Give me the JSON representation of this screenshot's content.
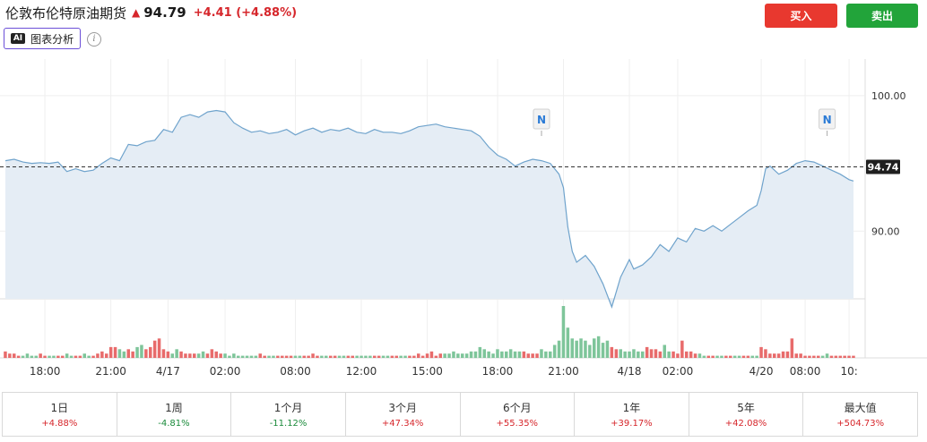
{
  "header": {
    "title": "伦敦布伦特原油期货",
    "price": "94.79",
    "change": "+4.41 (+4.88%)",
    "ai_label": "图表分析",
    "ai_badge": "AI",
    "info": "i",
    "buy_label": "买入",
    "sell_label": "卖出"
  },
  "colors": {
    "up": "#d6262b",
    "down": "#1a8a3a",
    "line": "#6fa3cc",
    "area": "#e5edf5",
    "buy": "#e8382f",
    "sell": "#22a43a"
  },
  "periods": [
    {
      "label": "1日",
      "value": "+4.88%",
      "dir": "up"
    },
    {
      "label": "1周",
      "value": "-4.81%",
      "dir": "down"
    },
    {
      "label": "1个月",
      "value": "-11.12%",
      "dir": "down"
    },
    {
      "label": "3个月",
      "value": "+47.34%",
      "dir": "up"
    },
    {
      "label": "6个月",
      "value": "+55.35%",
      "dir": "up"
    },
    {
      "label": "1年",
      "value": "+39.17%",
      "dir": "up"
    },
    {
      "label": "5年",
      "value": "+42.08%",
      "dir": "up"
    },
    {
      "label": "最大值",
      "value": "+504.73%",
      "dir": "up"
    }
  ],
  "chart_data": {
    "type": "area",
    "y_ticks": [
      "100.00",
      "90.00"
    ],
    "y_tick_values": [
      100,
      90
    ],
    "ylim": [
      85,
      102.7
    ],
    "current_price_label": "94.74",
    "current_price": 94.74,
    "x_tick_labels": [
      "18:00",
      "21:00",
      "4/17",
      "02:00",
      "08:00",
      "12:00",
      "15:00",
      "18:00",
      "21:00",
      "4/18",
      "02:00",
      "4/20",
      "08:00",
      "10:"
    ],
    "x_tick_values": [
      9,
      24,
      37,
      50,
      66,
      81,
      96,
      112,
      127,
      142,
      153,
      172,
      182,
      192
    ],
    "x_domain": [
      0,
      194
    ],
    "news_markers": [
      {
        "label": "N",
        "x": 122
      },
      {
        "label": "N",
        "x": 187
      }
    ],
    "price_series": [
      [
        0,
        95.2
      ],
      [
        2,
        95.3
      ],
      [
        4,
        95.1
      ],
      [
        6,
        95.0
      ],
      [
        8,
        95.05
      ],
      [
        10,
        95.0
      ],
      [
        12,
        95.1
      ],
      [
        14,
        94.4
      ],
      [
        16,
        94.6
      ],
      [
        18,
        94.4
      ],
      [
        20,
        94.5
      ],
      [
        22,
        95.0
      ],
      [
        24,
        95.4
      ],
      [
        26,
        95.2
      ],
      [
        28,
        96.4
      ],
      [
        30,
        96.3
      ],
      [
        32,
        96.6
      ],
      [
        34,
        96.7
      ],
      [
        36,
        97.5
      ],
      [
        38,
        97.3
      ],
      [
        40,
        98.4
      ],
      [
        42,
        98.6
      ],
      [
        44,
        98.4
      ],
      [
        46,
        98.8
      ],
      [
        48,
        98.9
      ],
      [
        50,
        98.8
      ],
      [
        52,
        98.0
      ],
      [
        54,
        97.6
      ],
      [
        56,
        97.3
      ],
      [
        58,
        97.4
      ],
      [
        60,
        97.2
      ],
      [
        62,
        97.3
      ],
      [
        64,
        97.5
      ],
      [
        66,
        97.1
      ],
      [
        68,
        97.4
      ],
      [
        70,
        97.6
      ],
      [
        72,
        97.3
      ],
      [
        74,
        97.5
      ],
      [
        76,
        97.4
      ],
      [
        78,
        97.6
      ],
      [
        80,
        97.3
      ],
      [
        82,
        97.2
      ],
      [
        84,
        97.5
      ],
      [
        86,
        97.3
      ],
      [
        88,
        97.3
      ],
      [
        90,
        97.2
      ],
      [
        92,
        97.4
      ],
      [
        94,
        97.7
      ],
      [
        96,
        97.8
      ],
      [
        98,
        97.9
      ],
      [
        100,
        97.7
      ],
      [
        102,
        97.6
      ],
      [
        104,
        97.5
      ],
      [
        106,
        97.4
      ],
      [
        108,
        97.0
      ],
      [
        110,
        96.2
      ],
      [
        112,
        95.6
      ],
      [
        114,
        95.3
      ],
      [
        116,
        94.8
      ],
      [
        118,
        95.1
      ],
      [
        120,
        95.3
      ],
      [
        122,
        95.2
      ],
      [
        124,
        95.0
      ],
      [
        125,
        94.6
      ],
      [
        126,
        94.2
      ],
      [
        127,
        93.2
      ],
      [
        128,
        90.3
      ],
      [
        129,
        88.5
      ],
      [
        130,
        87.7
      ],
      [
        132,
        88.2
      ],
      [
        134,
        87.4
      ],
      [
        136,
        86.1
      ],
      [
        138,
        84.4
      ],
      [
        140,
        86.6
      ],
      [
        142,
        87.9
      ],
      [
        143,
        87.2
      ],
      [
        145,
        87.5
      ],
      [
        147,
        88.1
      ],
      [
        149,
        89.0
      ],
      [
        151,
        88.5
      ],
      [
        153,
        89.5
      ],
      [
        155,
        89.2
      ],
      [
        157,
        90.2
      ],
      [
        159,
        90.0
      ],
      [
        161,
        90.4
      ],
      [
        163,
        90.0
      ],
      [
        165,
        90.5
      ],
      [
        167,
        91.0
      ],
      [
        169,
        91.5
      ],
      [
        171,
        91.9
      ],
      [
        172,
        93.0
      ],
      [
        173,
        94.6
      ],
      [
        174,
        94.8
      ],
      [
        176,
        94.2
      ],
      [
        178,
        94.5
      ],
      [
        180,
        95.0
      ],
      [
        182,
        95.2
      ],
      [
        184,
        95.1
      ],
      [
        186,
        94.8
      ],
      [
        188,
        94.5
      ],
      [
        190,
        94.2
      ],
      [
        192,
        93.8
      ],
      [
        193,
        93.7
      ]
    ],
    "volume_series": [
      [
        0,
        3
      ],
      [
        1,
        2
      ],
      [
        2,
        2
      ],
      [
        3,
        1
      ],
      [
        4,
        1
      ],
      [
        5,
        2
      ],
      [
        6,
        1
      ],
      [
        7,
        1
      ],
      [
        8,
        2
      ],
      [
        9,
        1
      ],
      [
        10,
        1
      ],
      [
        11,
        1
      ],
      [
        12,
        1
      ],
      [
        13,
        1
      ],
      [
        14,
        2
      ],
      [
        15,
        1
      ],
      [
        16,
        1
      ],
      [
        17,
        1
      ],
      [
        18,
        2
      ],
      [
        19,
        1
      ],
      [
        20,
        1
      ],
      [
        21,
        2
      ],
      [
        22,
        3
      ],
      [
        23,
        2
      ],
      [
        24,
        5
      ],
      [
        25,
        5
      ],
      [
        26,
        4
      ],
      [
        27,
        3
      ],
      [
        28,
        4
      ],
      [
        29,
        3
      ],
      [
        30,
        5
      ],
      [
        31,
        6
      ],
      [
        32,
        4
      ],
      [
        33,
        5
      ],
      [
        34,
        8
      ],
      [
        35,
        9
      ],
      [
        36,
        4
      ],
      [
        37,
        3
      ],
      [
        38,
        2
      ],
      [
        39,
        4
      ],
      [
        40,
        3
      ],
      [
        41,
        2
      ],
      [
        42,
        2
      ],
      [
        43,
        2
      ],
      [
        44,
        2
      ],
      [
        45,
        3
      ],
      [
        46,
        2
      ],
      [
        47,
        4
      ],
      [
        48,
        3
      ],
      [
        49,
        2
      ],
      [
        50,
        2
      ],
      [
        51,
        1
      ],
      [
        52,
        2
      ],
      [
        53,
        1
      ],
      [
        54,
        1
      ],
      [
        55,
        1
      ],
      [
        56,
        1
      ],
      [
        57,
        1
      ],
      [
        58,
        2
      ],
      [
        59,
        1
      ],
      [
        60,
        1
      ],
      [
        61,
        1
      ],
      [
        62,
        1
      ],
      [
        63,
        1
      ],
      [
        64,
        1
      ],
      [
        65,
        1
      ],
      [
        66,
        1
      ],
      [
        67,
        1
      ],
      [
        68,
        1
      ],
      [
        69,
        1
      ],
      [
        70,
        2
      ],
      [
        71,
        1
      ],
      [
        72,
        1
      ],
      [
        73,
        1
      ],
      [
        74,
        1
      ],
      [
        75,
        1
      ],
      [
        76,
        1
      ],
      [
        77,
        1
      ],
      [
        78,
        1
      ],
      [
        79,
        1
      ],
      [
        80,
        1
      ],
      [
        81,
        1
      ],
      [
        82,
        1
      ],
      [
        83,
        1
      ],
      [
        84,
        1
      ],
      [
        85,
        1
      ],
      [
        86,
        1
      ],
      [
        87,
        1
      ],
      [
        88,
        1
      ],
      [
        89,
        1
      ],
      [
        90,
        1
      ],
      [
        91,
        1
      ],
      [
        92,
        1
      ],
      [
        93,
        1
      ],
      [
        94,
        2
      ],
      [
        95,
        1
      ],
      [
        96,
        2
      ],
      [
        97,
        3
      ],
      [
        98,
        1
      ],
      [
        99,
        2
      ],
      [
        100,
        2
      ],
      [
        101,
        2
      ],
      [
        102,
        3
      ],
      [
        103,
        2
      ],
      [
        104,
        2
      ],
      [
        105,
        2
      ],
      [
        106,
        3
      ],
      [
        107,
        3
      ],
      [
        108,
        5
      ],
      [
        109,
        4
      ],
      [
        110,
        3
      ],
      [
        111,
        2
      ],
      [
        112,
        4
      ],
      [
        113,
        3
      ],
      [
        114,
        3
      ],
      [
        115,
        4
      ],
      [
        116,
        3
      ],
      [
        117,
        3
      ],
      [
        118,
        3
      ],
      [
        119,
        2
      ],
      [
        120,
        2
      ],
      [
        121,
        2
      ],
      [
        122,
        4
      ],
      [
        123,
        3
      ],
      [
        124,
        3
      ],
      [
        125,
        6
      ],
      [
        126,
        8
      ],
      [
        127,
        24
      ],
      [
        128,
        14
      ],
      [
        129,
        9
      ],
      [
        130,
        8
      ],
      [
        131,
        9
      ],
      [
        132,
        8
      ],
      [
        133,
        6
      ],
      [
        134,
        9
      ],
      [
        135,
        10
      ],
      [
        136,
        7
      ],
      [
        137,
        8
      ],
      [
        138,
        5
      ],
      [
        139,
        4
      ],
      [
        140,
        4
      ],
      [
        141,
        3
      ],
      [
        142,
        3
      ],
      [
        143,
        4
      ],
      [
        144,
        3
      ],
      [
        145,
        3
      ],
      [
        146,
        5
      ],
      [
        147,
        4
      ],
      [
        148,
        4
      ],
      [
        149,
        3
      ],
      [
        150,
        6
      ],
      [
        151,
        3
      ],
      [
        152,
        3
      ],
      [
        153,
        2
      ],
      [
        154,
        8
      ],
      [
        155,
        3
      ],
      [
        156,
        3
      ],
      [
        157,
        2
      ],
      [
        158,
        2
      ],
      [
        159,
        1
      ],
      [
        160,
        1
      ],
      [
        161,
        1
      ],
      [
        162,
        1
      ],
      [
        163,
        1
      ],
      [
        164,
        1
      ],
      [
        165,
        1
      ],
      [
        166,
        1
      ],
      [
        167,
        1
      ],
      [
        168,
        1
      ],
      [
        169,
        1
      ],
      [
        170,
        1
      ],
      [
        171,
        1
      ],
      [
        172,
        5
      ],
      [
        173,
        4
      ],
      [
        174,
        2
      ],
      [
        175,
        2
      ],
      [
        176,
        2
      ],
      [
        177,
        3
      ],
      [
        178,
        3
      ],
      [
        179,
        9
      ],
      [
        180,
        2
      ],
      [
        181,
        2
      ],
      [
        182,
        1
      ],
      [
        183,
        1
      ],
      [
        184,
        1
      ],
      [
        185,
        1
      ],
      [
        186,
        1
      ],
      [
        187,
        2
      ],
      [
        188,
        1
      ],
      [
        189,
        1
      ],
      [
        190,
        1
      ],
      [
        191,
        1
      ],
      [
        192,
        1
      ],
      [
        193,
        1
      ]
    ]
  }
}
